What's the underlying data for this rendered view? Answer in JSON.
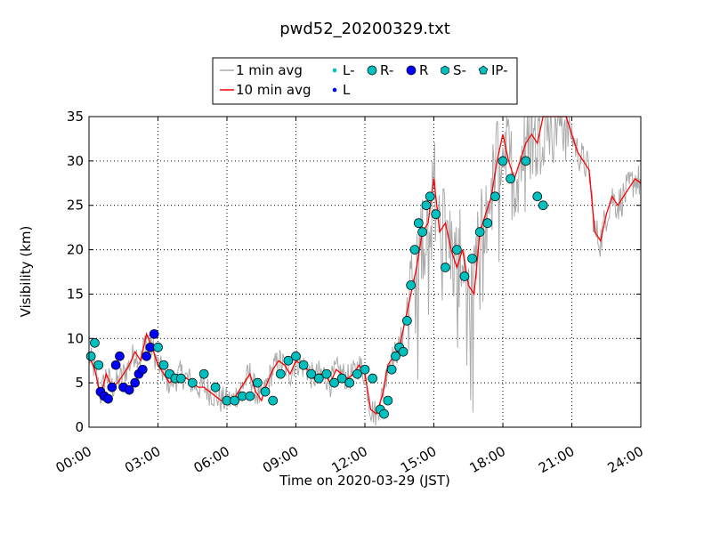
{
  "chart_data": {
    "type": "line",
    "title": "pwd52_20200329.txt",
    "xlabel": "Time on 2020-03-29 (JST)",
    "ylabel": "Visibility (km)",
    "xlim": [
      "00:00",
      "24:00"
    ],
    "ylim": [
      0,
      35
    ],
    "x_ticks": [
      "00:00",
      "03:00",
      "06:00",
      "09:00",
      "12:00",
      "15:00",
      "18:00",
      "21:00",
      "24:00"
    ],
    "y_ticks": [
      0,
      5,
      10,
      15,
      20,
      25,
      30,
      35
    ],
    "grid": true,
    "legend_position": "top-center",
    "legend": [
      {
        "name": "1 min avg",
        "marker": "line",
        "color": "#aaaaaa"
      },
      {
        "name": "10 min avg",
        "marker": "line",
        "color": "#ff0000"
      },
      {
        "name": "L-",
        "marker": "small-dot",
        "color": "#00bfbf"
      },
      {
        "name": "L",
        "marker": "small-dot",
        "color": "#0000ff"
      },
      {
        "name": "R-",
        "marker": "circle",
        "color": "#00bfbf"
      },
      {
        "name": "R",
        "marker": "circle",
        "color": "#0000ff"
      },
      {
        "name": "S-",
        "marker": "hexagon",
        "color": "#00bfbf"
      },
      {
        "name": "IP-",
        "marker": "pentagon",
        "color": "#00bfbf"
      }
    ],
    "series": [
      {
        "name": "10 min avg",
        "color": "#ff0000",
        "x": [
          "00:00",
          "00:15",
          "00:30",
          "00:45",
          "01:00",
          "01:15",
          "01:30",
          "01:45",
          "02:00",
          "02:15",
          "02:30",
          "02:45",
          "03:00",
          "03:15",
          "03:30",
          "03:45",
          "04:00",
          "04:15",
          "04:30",
          "04:45",
          "05:00",
          "05:15",
          "05:30",
          "05:45",
          "06:00",
          "06:15",
          "06:30",
          "06:45",
          "07:00",
          "07:15",
          "07:30",
          "07:45",
          "08:00",
          "08:15",
          "08:30",
          "08:45",
          "09:00",
          "09:15",
          "09:30",
          "09:45",
          "10:00",
          "10:15",
          "10:30",
          "10:45",
          "11:00",
          "11:15",
          "11:30",
          "11:45",
          "12:00",
          "12:15",
          "12:30",
          "12:45",
          "13:00",
          "13:15",
          "13:30",
          "13:45",
          "14:00",
          "14:15",
          "14:30",
          "14:45",
          "15:00",
          "15:15",
          "15:30",
          "15:45",
          "16:00",
          "16:15",
          "16:30",
          "16:45",
          "17:00",
          "17:15",
          "17:30",
          "17:45",
          "18:00",
          "18:15",
          "18:30",
          "18:45",
          "19:00",
          "19:15",
          "19:30",
          "19:45",
          "20:00",
          "20:15",
          "20:30",
          "20:45",
          "21:00",
          "21:15",
          "21:30",
          "21:45",
          "22:00",
          "22:15",
          "22:30",
          "22:45",
          "23:00",
          "23:15",
          "23:30",
          "23:45",
          "24:00"
        ],
        "values": [
          8,
          6.5,
          3.5,
          6,
          4.5,
          5,
          6,
          7,
          8.5,
          7.5,
          10.5,
          9,
          7,
          6,
          5,
          5.5,
          6,
          5.5,
          5,
          4.5,
          4.5,
          4,
          3.5,
          3,
          3,
          3,
          4,
          5,
          6,
          4,
          3,
          5,
          6.5,
          7.5,
          7,
          6,
          7.5,
          7,
          6.5,
          5.5,
          6,
          6,
          5,
          6.5,
          6,
          5.5,
          6,
          7,
          6,
          2,
          1.5,
          3.5,
          7,
          8,
          9,
          12,
          15,
          18,
          22,
          23,
          28,
          22,
          23,
          20,
          18,
          20,
          16,
          15,
          22,
          24,
          26,
          30,
          33,
          30,
          28,
          30,
          32,
          33,
          32,
          35,
          35,
          35,
          35,
          35,
          33,
          31,
          30,
          29,
          22,
          21,
          24,
          26,
          25,
          26,
          27,
          28,
          27.5
        ]
      },
      {
        "name": "1 min avg",
        "color": "#aaaaaa",
        "note": "noisy raw trace around the 10 min avg"
      },
      {
        "name": "R",
        "color": "#0000ff",
        "x": [
          "00:30",
          "00:40",
          "00:50",
          "01:00",
          "01:10",
          "01:20",
          "01:30",
          "01:45",
          "02:00",
          "02:10",
          "02:20",
          "02:30",
          "02:40",
          "02:50"
        ],
        "values": [
          4,
          3.5,
          3.2,
          4.5,
          7,
          8,
          4.5,
          4.2,
          5,
          6,
          6.5,
          8,
          9,
          10.5
        ]
      },
      {
        "name": "R-",
        "color": "#00bfbf",
        "x": [
          "00:05",
          "00:15",
          "00:25",
          "03:00",
          "03:15",
          "03:30",
          "03:45",
          "04:00",
          "04:30",
          "05:00",
          "05:30",
          "06:00",
          "06:20",
          "06:40",
          "07:00",
          "07:20",
          "07:40",
          "08:00",
          "08:20",
          "08:40",
          "09:00",
          "09:20",
          "09:40",
          "10:00",
          "10:20",
          "10:40",
          "11:00",
          "11:20",
          "11:40",
          "12:00",
          "12:20",
          "12:40",
          "12:50",
          "13:00",
          "13:10",
          "13:20",
          "13:30",
          "13:40",
          "13:50",
          "14:00",
          "14:10",
          "14:20",
          "14:30",
          "14:40",
          "14:50",
          "15:05",
          "15:30",
          "16:00",
          "16:20",
          "16:40",
          "17:00",
          "17:20",
          "17:40",
          "18:00",
          "18:20",
          "19:00",
          "19:30",
          "19:45"
        ],
        "values": [
          8,
          9.5,
          7,
          9,
          7,
          6,
          5.5,
          5.5,
          5,
          6,
          4.5,
          3,
          3,
          3.5,
          3.5,
          5,
          4,
          3,
          6,
          7.5,
          8,
          7,
          6,
          5.5,
          6,
          5,
          5.5,
          5,
          6,
          6.5,
          5.5,
          2,
          1.5,
          3,
          6.5,
          8,
          9,
          8.5,
          12,
          16,
          20,
          23,
          22,
          25,
          26,
          24,
          18,
          20,
          17,
          19,
          22,
          23,
          26,
          30,
          28,
          30,
          26,
          25
        ]
      }
    ]
  }
}
